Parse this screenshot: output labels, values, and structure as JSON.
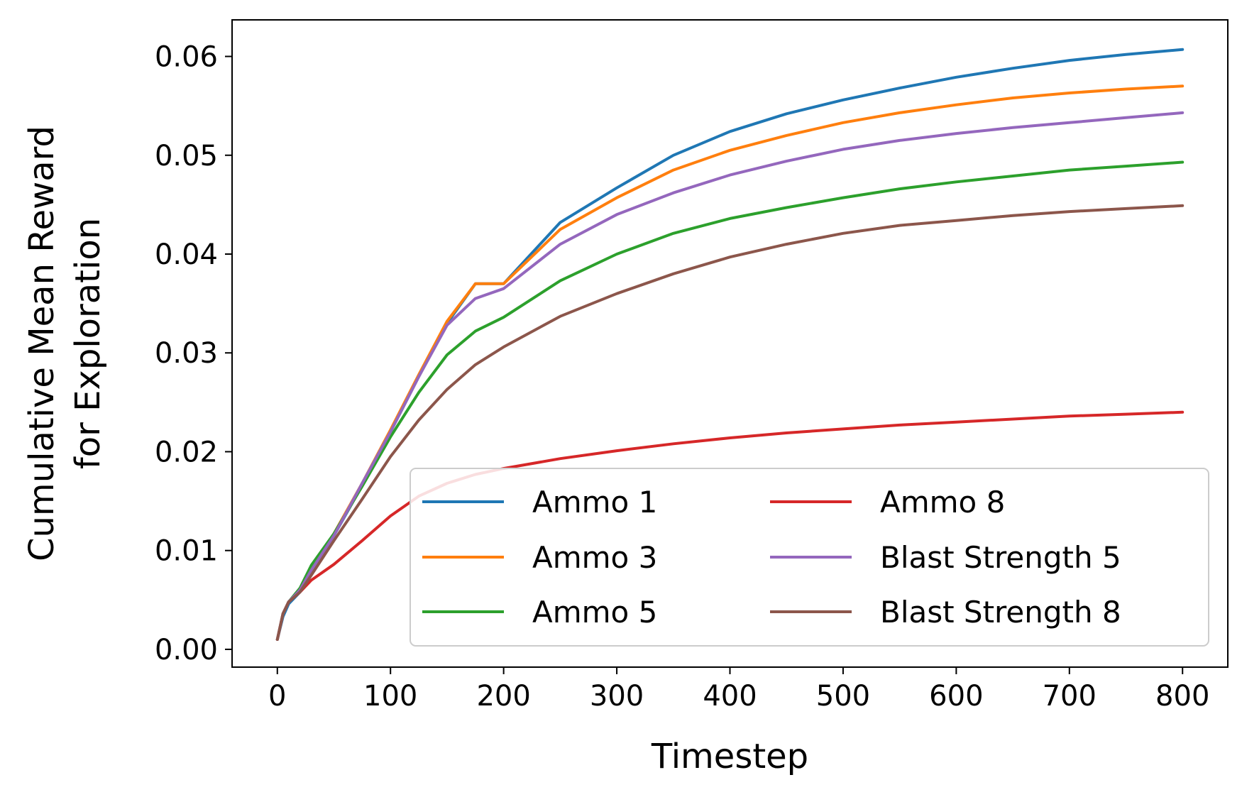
{
  "chart_data": {
    "type": "line",
    "title": "",
    "xlabel": "Timestep",
    "ylabel_lines": [
      "Cumulative Mean Reward",
      "for Exploration"
    ],
    "xlim": [
      -40,
      840
    ],
    "ylim": [
      -0.0018,
      0.0637
    ],
    "xticks": [
      0,
      100,
      200,
      300,
      400,
      500,
      600,
      700,
      800
    ],
    "xtick_labels": [
      "0",
      "100",
      "200",
      "300",
      "400",
      "500",
      "600",
      "700",
      "800"
    ],
    "yticks": [
      0.0,
      0.01,
      0.02,
      0.03,
      0.04,
      0.05,
      0.06
    ],
    "ytick_labels": [
      "0.00",
      "0.01",
      "0.02",
      "0.03",
      "0.04",
      "0.05",
      "0.06"
    ],
    "grid": false,
    "legend_position": "lower-right",
    "legend_columns": 2,
    "x": [
      0,
      5,
      10,
      20,
      30,
      50,
      75,
      100,
      125,
      150,
      175,
      200,
      250,
      300,
      350,
      400,
      450,
      500,
      550,
      600,
      650,
      700,
      750,
      800
    ],
    "series": [
      {
        "name": "Ammo 1",
        "color": "#1f77b4",
        "values": [
          0.001,
          0.0033,
          0.0046,
          0.0058,
          0.008,
          0.0115,
          0.0166,
          0.022,
          0.0276,
          0.033,
          0.037,
          0.037,
          0.0432,
          0.0467,
          0.05,
          0.0524,
          0.0542,
          0.0556,
          0.0568,
          0.0579,
          0.0588,
          0.0596,
          0.0602,
          0.0607
        ]
      },
      {
        "name": "Ammo 3",
        "color": "#ff7f0e",
        "values": [
          0.001,
          0.0036,
          0.0048,
          0.006,
          0.0082,
          0.0117,
          0.0168,
          0.0222,
          0.0278,
          0.0332,
          0.037,
          0.037,
          0.0425,
          0.0457,
          0.0485,
          0.0505,
          0.052,
          0.0533,
          0.0543,
          0.0551,
          0.0558,
          0.0563,
          0.0567,
          0.057
        ]
      },
      {
        "name": "Ammo 5",
        "color": "#2ca02c",
        "values": [
          0.001,
          0.0036,
          0.0048,
          0.0062,
          0.0085,
          0.0117,
          0.0165,
          0.0215,
          0.026,
          0.0298,
          0.0322,
          0.0336,
          0.0373,
          0.04,
          0.0421,
          0.0436,
          0.0447,
          0.0457,
          0.0466,
          0.0473,
          0.0479,
          0.0485,
          0.0489,
          0.0493
        ]
      },
      {
        "name": "Ammo 8",
        "color": "#d62728",
        "values": [
          0.001,
          0.0036,
          0.0048,
          0.0058,
          0.007,
          0.0086,
          0.011,
          0.0135,
          0.0155,
          0.0168,
          0.0177,
          0.0183,
          0.0193,
          0.0201,
          0.0208,
          0.0214,
          0.0219,
          0.0223,
          0.0227,
          0.023,
          0.0233,
          0.0236,
          0.0238,
          0.024
        ]
      },
      {
        "name": "Blast Strength 5",
        "color": "#9467bd",
        "values": [
          0.001,
          0.0036,
          0.0048,
          0.006,
          0.008,
          0.0115,
          0.0168,
          0.022,
          0.0276,
          0.0328,
          0.0355,
          0.0365,
          0.041,
          0.044,
          0.0462,
          0.048,
          0.0494,
          0.0506,
          0.0515,
          0.0522,
          0.0528,
          0.0533,
          0.0538,
          0.0543
        ]
      },
      {
        "name": "Blast Strength 8",
        "color": "#8c564b",
        "values": [
          0.001,
          0.0036,
          0.0048,
          0.0058,
          0.0075,
          0.011,
          0.0152,
          0.0195,
          0.0232,
          0.0263,
          0.0288,
          0.0306,
          0.0337,
          0.036,
          0.038,
          0.0397,
          0.041,
          0.0421,
          0.0429,
          0.0434,
          0.0439,
          0.0443,
          0.0446,
          0.0449
        ]
      }
    ]
  }
}
